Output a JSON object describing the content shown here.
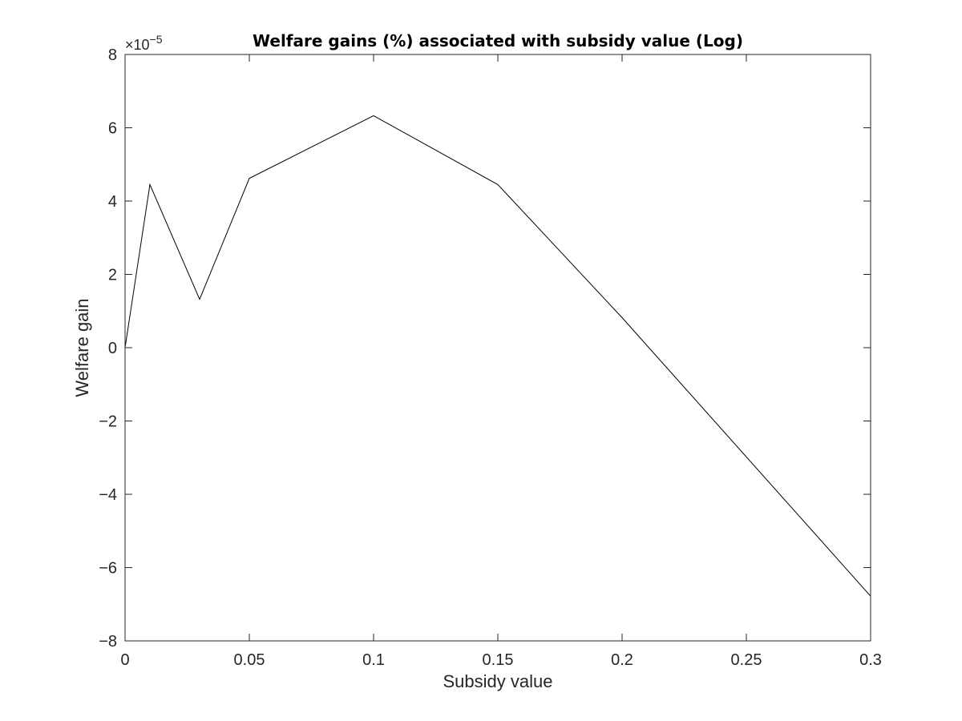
{
  "chart_data": {
    "type": "line",
    "title": "Welfare gains (%) associated with subsidy value (Log)",
    "xlabel": "Subsidy value",
    "ylabel": "Welfare gain",
    "y_exponent_label": "×10",
    "y_exponent_power": "−5",
    "xlim": [
      0,
      0.3
    ],
    "ylim": [
      -8e-05,
      8e-05
    ],
    "grid": false,
    "box": true,
    "line_color": "#000000",
    "x_ticks": [
      {
        "value": 0,
        "label": "0"
      },
      {
        "value": 0.05,
        "label": "0.05"
      },
      {
        "value": 0.1,
        "label": "0.1"
      },
      {
        "value": 0.15,
        "label": "0.15"
      },
      {
        "value": 0.2,
        "label": "0.2"
      },
      {
        "value": 0.25,
        "label": "0.25"
      },
      {
        "value": 0.3,
        "label": "0.3"
      }
    ],
    "y_ticks": [
      {
        "value": -8e-05,
        "label": "−8"
      },
      {
        "value": -6e-05,
        "label": "−6"
      },
      {
        "value": -4e-05,
        "label": "−4"
      },
      {
        "value": -2e-05,
        "label": "−2"
      },
      {
        "value": 0,
        "label": "0"
      },
      {
        "value": 2e-05,
        "label": "2"
      },
      {
        "value": 4e-05,
        "label": "4"
      },
      {
        "value": 6e-05,
        "label": "6"
      },
      {
        "value": 8e-05,
        "label": "8"
      }
    ],
    "series": [
      {
        "x": [
          0,
          0.01,
          0.03,
          0.05,
          0.1,
          0.15,
          0.2,
          0.3
        ],
        "y": [
          0,
          4.45e-05,
          1.32e-05,
          4.62e-05,
          6.33e-05,
          4.45e-05,
          8.2e-06,
          -6.78e-05
        ]
      }
    ]
  }
}
